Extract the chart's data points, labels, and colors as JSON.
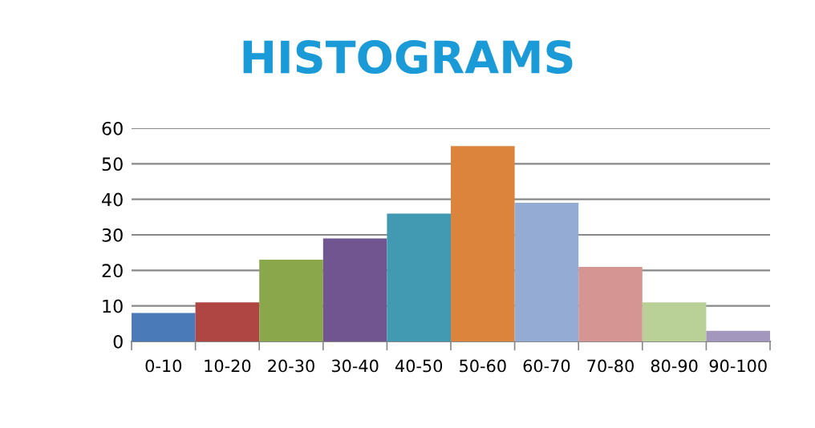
{
  "chart_data": {
    "type": "bar",
    "title": "HISTOGRAMS",
    "categories": [
      "0-10",
      "10-20",
      "20-30",
      "30-40",
      "40-50",
      "50-60",
      "60-70",
      "70-80",
      "80-90",
      "90-100"
    ],
    "values": [
      8,
      11,
      23,
      29,
      36,
      55,
      39,
      21,
      11,
      3
    ],
    "colors": [
      "#4a7ab8",
      "#b04643",
      "#8aa74c",
      "#705590",
      "#4299b2",
      "#dc843c",
      "#94abd3",
      "#d49593",
      "#b9d096",
      "#a497bd"
    ],
    "ylim": [
      0,
      60
    ],
    "yticks": [
      0,
      10,
      20,
      30,
      40,
      50,
      60
    ],
    "grid": "y"
  }
}
